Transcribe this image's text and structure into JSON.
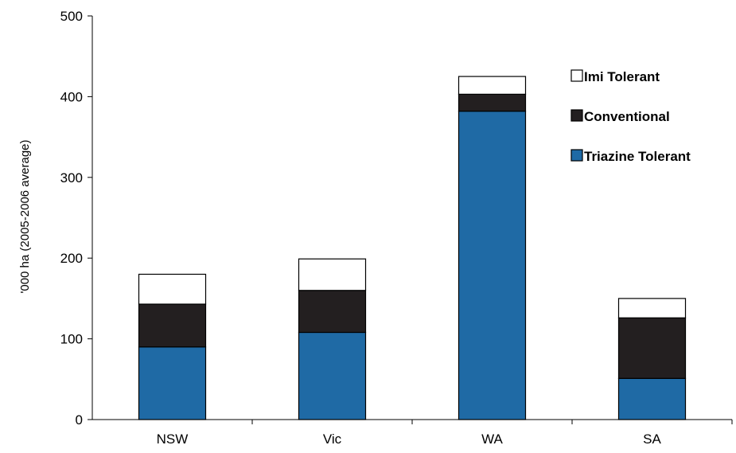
{
  "chart_data": {
    "type": "bar",
    "stacked": true,
    "title": "",
    "xlabel": "",
    "ylabel": "'000 ha (2005-2006 average)",
    "ylim": [
      0,
      500
    ],
    "yticks": [
      0,
      100,
      200,
      300,
      400,
      500
    ],
    "grid": false,
    "legend_position": "top-right",
    "categories": [
      "NSW",
      "Vic",
      "WA",
      "SA"
    ],
    "series": [
      {
        "name": "Triazine Tolerant",
        "color": "#1f6aa5",
        "values": [
          90,
          108,
          382,
          51
        ]
      },
      {
        "name": "Conventional",
        "color": "#231f20",
        "values": [
          53,
          52,
          21,
          75
        ]
      },
      {
        "name": "Imi Tolerant",
        "color": "#ffffff",
        "values": [
          37,
          39,
          22,
          24
        ]
      }
    ],
    "legend_order": [
      "Imi Tolerant",
      "Conventional",
      "Triazine Tolerant"
    ]
  }
}
